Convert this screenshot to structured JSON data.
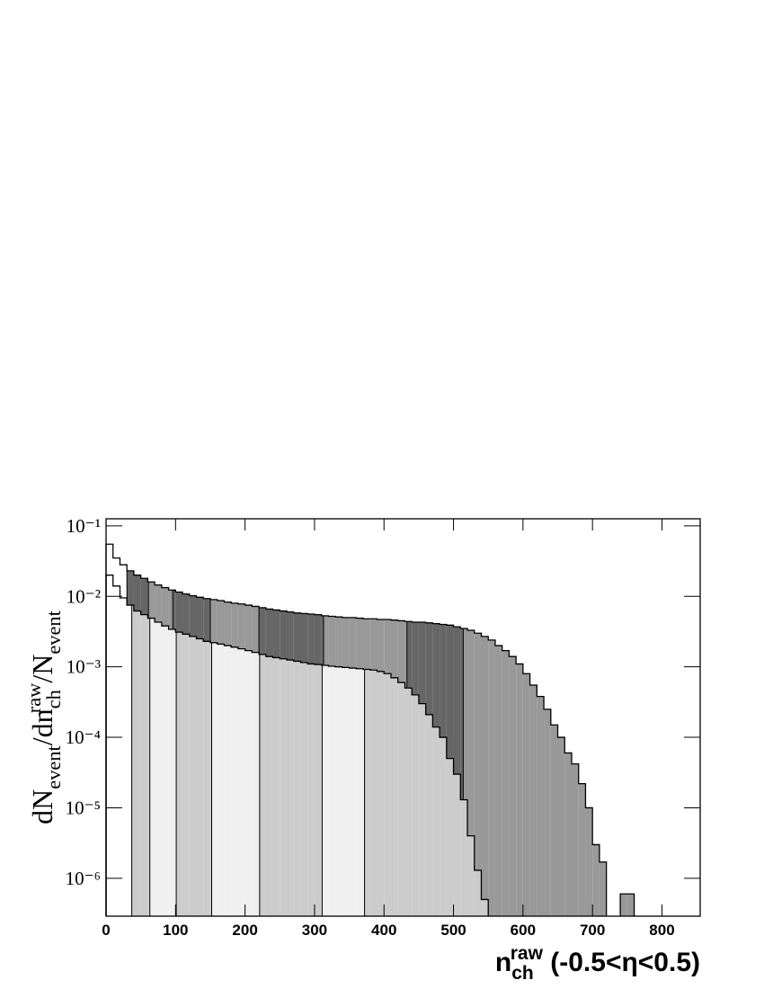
{
  "chart_data": {
    "type": "histogram",
    "x_label": "n_{ch}^{raw} (-0.5<η<0.5)",
    "y_label": "dN_{event}/dn_{ch}^{raw}/N_{event}",
    "log_y": true,
    "xlim": [
      0,
      855
    ],
    "ylim": [
      2.9e-07,
      0.126
    ],
    "xticks": [
      0,
      100,
      200,
      300,
      400,
      500,
      600,
      700,
      800
    ],
    "yticks": [
      {
        "value": 1e-06,
        "label": "10⁻⁶"
      },
      {
        "value": 1e-05,
        "label": "10⁻⁵"
      },
      {
        "value": 0.0001,
        "label": "10⁻⁴"
      },
      {
        "value": 0.001,
        "label": "10⁻³"
      },
      {
        "value": 0.01,
        "label": "10⁻²"
      },
      {
        "value": 0.1,
        "label": "10⁻¹"
      }
    ],
    "bins": [
      0,
      10,
      20,
      30,
      40,
      50,
      60,
      70,
      80,
      90,
      100,
      110,
      120,
      130,
      140,
      150,
      160,
      170,
      180,
      190,
      200,
      210,
      220,
      230,
      240,
      250,
      260,
      270,
      280,
      290,
      300,
      310,
      320,
      330,
      340,
      350,
      360,
      370,
      380,
      390,
      400,
      410,
      420,
      430,
      440,
      450,
      460,
      470,
      480,
      490,
      500,
      510,
      520,
      530,
      540,
      550,
      560,
      570,
      580,
      590,
      600,
      610,
      620,
      630,
      640,
      650,
      660,
      670,
      680,
      690,
      700,
      710,
      720,
      730,
      740,
      750,
      760,
      770
    ],
    "series": [
      {
        "color": "#000000",
        "values": [
          0.02,
          0.014,
          0.0095,
          0.0075,
          0.0062,
          0.0055,
          0.0049,
          0.0043,
          0.0038,
          0.0034,
          0.0031,
          0.0029,
          0.0027,
          0.0025,
          0.0023,
          0.0022,
          0.0021,
          0.002,
          0.0019,
          0.0018,
          0.0017,
          0.0016,
          0.0015,
          0.0014,
          0.00135,
          0.0013,
          0.00125,
          0.0012,
          0.00115,
          0.0011,
          0.00108,
          0.00105,
          0.00102,
          0.001,
          0.00098,
          0.00096,
          0.00094,
          0.00092,
          0.0009,
          0.00086,
          0.0008,
          0.0007,
          0.0006,
          0.0005,
          0.0004,
          0.0003,
          0.00021,
          0.00014,
          0.0001,
          5e-05,
          3e-05,
          1.3e-05,
          4e-06,
          1.3e-06,
          5e-07,
          null,
          null,
          null,
          null,
          null,
          null,
          null,
          null,
          null,
          null,
          null,
          null,
          null,
          null,
          null,
          null,
          null,
          null,
          null,
          null,
          null,
          null
        ],
        "bands": [
          {
            "from": 37,
            "to": 63,
            "color": "#cccccc"
          },
          {
            "from": 63,
            "to": 101,
            "color": "#f0f0f0"
          },
          {
            "from": 101,
            "to": 152,
            "color": "#cccccc"
          },
          {
            "from": 152,
            "to": 221,
            "color": "#f0f0f0"
          },
          {
            "from": 221,
            "to": 311,
            "color": "#cccccc"
          },
          {
            "from": 311,
            "to": 372,
            "color": "#f0f0f0"
          },
          {
            "from": 372,
            "to": 770,
            "color": "#cccccc"
          }
        ]
      },
      {
        "color": "#000000",
        "values": [
          0.055,
          0.035,
          0.028,
          0.023,
          0.02,
          0.018,
          0.016,
          0.0145,
          0.0133,
          0.0123,
          0.0115,
          0.0108,
          0.0102,
          0.0097,
          0.0093,
          0.009,
          0.0087,
          0.0083,
          0.008,
          0.0078,
          0.0075,
          0.0072,
          0.0069,
          0.0066,
          0.0064,
          0.0062,
          0.006,
          0.0058,
          0.0057,
          0.0056,
          0.0055,
          0.0053,
          0.0052,
          0.0051,
          0.005,
          0.005,
          0.0049,
          0.0048,
          0.0048,
          0.0047,
          0.0047,
          0.0046,
          0.0045,
          0.0044,
          0.0043,
          0.0043,
          0.0042,
          0.0041,
          0.004,
          0.0039,
          0.0037,
          0.0035,
          0.0033,
          0.003,
          0.0027,
          0.0024,
          0.002,
          0.0017,
          0.0014,
          0.0011,
          0.0008,
          0.00055,
          0.00038,
          0.00025,
          0.00015,
          0.0001,
          6e-05,
          4.2e-05,
          2.2e-05,
          1e-05,
          3e-06,
          1.7e-06,
          null,
          null,
          6e-07,
          6e-07,
          null
        ],
        "bands": [
          {
            "from": 30,
            "to": 61,
            "color": "#666666"
          },
          {
            "from": 61,
            "to": 96,
            "color": "#999999"
          },
          {
            "from": 96,
            "to": 150,
            "color": "#666666"
          },
          {
            "from": 150,
            "to": 220,
            "color": "#999999"
          },
          {
            "from": 220,
            "to": 313,
            "color": "#666666"
          },
          {
            "from": 313,
            "to": 433,
            "color": "#999999"
          },
          {
            "from": 433,
            "to": 514,
            "color": "#666666"
          },
          {
            "from": 514,
            "to": 770,
            "color": "#999999"
          }
        ]
      }
    ]
  }
}
